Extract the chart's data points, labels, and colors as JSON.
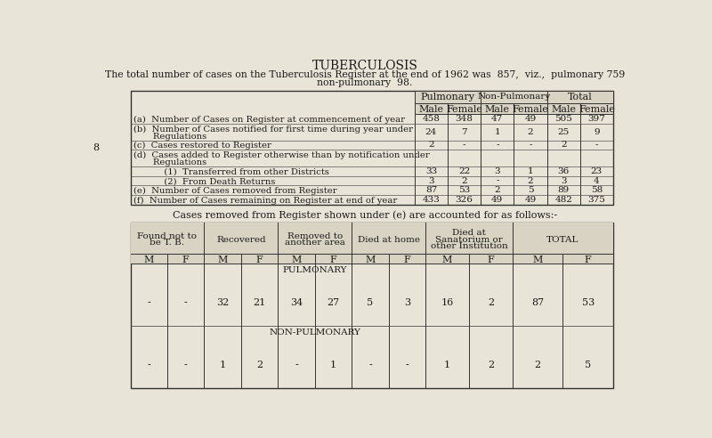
{
  "title": "TUBERCULOSIS",
  "subtitle_line1": "The total number of cases on the Tuberculosis Register at the end of 1962 was  857,  viz.,  pulmonary 759",
  "subtitle_line2": "non-pulmonary  98.",
  "bg_color": "#e8e4d8",
  "page_number": "8",
  "table1": {
    "col_headers": [
      "Pulmonary",
      "Non-Pulmonary",
      "Total"
    ],
    "sub_headers": [
      "Male",
      "Female",
      "Male",
      "Female",
      "Male",
      "Female"
    ],
    "rows": [
      {
        "label_lines": [
          "(a)  Number of Cases on Register at commencement of year"
        ],
        "values": [
          "458",
          "348",
          "47",
          "49",
          "505",
          "397"
        ],
        "val_row": 0
      },
      {
        "label_lines": [
          "(b)  Number of Cases notified for first time during year under",
          "       Regulations"
        ],
        "values": [
          "24",
          "7",
          "1",
          "2",
          "25",
          "9"
        ],
        "val_row": 1
      },
      {
        "label_lines": [
          "(c)  Cases restored to Register"
        ],
        "values": [
          "2",
          "-",
          "-",
          "-",
          "2",
          "-"
        ],
        "val_row": 0
      },
      {
        "label_lines": [
          "(d)  Cases added to Register otherwise than by notification under",
          "       Regulations"
        ],
        "values": [
          "",
          "",
          "",
          "",
          "",
          ""
        ],
        "val_row": -1
      },
      {
        "label_lines": [
          "           (1)  Transferred from other Districts"
        ],
        "values": [
          "33",
          "22",
          "3",
          "1",
          "36",
          "23"
        ],
        "val_row": 0
      },
      {
        "label_lines": [
          "           (2)  From Death Returns"
        ],
        "values": [
          "3",
          "2",
          "-",
          "2",
          "3",
          "4"
        ],
        "val_row": 0
      },
      {
        "label_lines": [
          "(e)  Number of Cases removed from Register"
        ],
        "values": [
          "87",
          "53",
          "2",
          "5",
          "89",
          "58"
        ],
        "val_row": 0
      },
      {
        "label_lines": [
          "(f)  Number of Cases remaining on Register at end of year"
        ],
        "values": [
          "433",
          "326",
          "49",
          "49",
          "482",
          "375"
        ],
        "val_row": 0
      }
    ]
  },
  "table2_title": "Cases removed from Register shown under (e) are accounted for as follows:-",
  "table2": {
    "col_headers": [
      "Found not to\nbe T. B.",
      "Recovered",
      "Removed to\nanother area",
      "Died at home",
      "Died at\nSanatorium or\nother Institution",
      "TOTAL"
    ],
    "sub_headers": [
      "M",
      "F",
      "M",
      "F",
      "M",
      "F",
      "M",
      "F",
      "M",
      "F",
      "M",
      "F"
    ],
    "rows": [
      {
        "type_label": "PULMONARY",
        "values": [
          "-",
          "-",
          "32",
          "21",
          "34",
          "27",
          "5",
          "3",
          "16",
          "2",
          "87",
          "53"
        ]
      },
      {
        "type_label": "NON-PULMONARY",
        "values": [
          "-",
          "-",
          "1",
          "2",
          "-",
          "1",
          "-",
          "-",
          "1",
          "2",
          "2",
          "5"
        ]
      }
    ]
  }
}
